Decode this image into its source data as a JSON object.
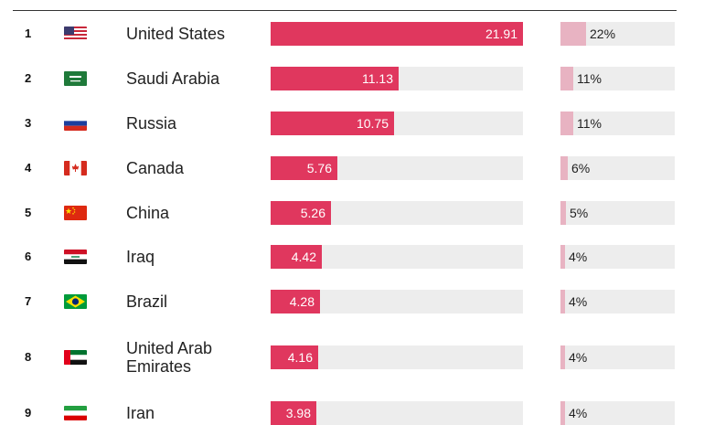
{
  "chart_data": {
    "type": "bar",
    "title": "",
    "xlabel": "",
    "ylabel": "",
    "ylim": [
      0,
      21.91
    ],
    "series": [
      {
        "name": "value",
        "values": [
          21.91,
          11.13,
          10.75,
          5.76,
          5.26,
          4.42,
          4.28,
          4.16,
          3.98
        ]
      },
      {
        "name": "share",
        "values": [
          22,
          11,
          11,
          6,
          5,
          4,
          4,
          4,
          4
        ]
      }
    ],
    "rows": [
      {
        "rank": "1",
        "country_lines": [
          "United States"
        ],
        "flag_icon": "us-flag-icon",
        "value": 21.91,
        "value_label": "21.91",
        "share": 22,
        "share_label": "22%"
      },
      {
        "rank": "2",
        "country_lines": [
          "Saudi Arabia"
        ],
        "flag_icon": "saudi-arabia-flag-icon",
        "value": 11.13,
        "value_label": "11.13",
        "share": 11,
        "share_label": "11%"
      },
      {
        "rank": "3",
        "country_lines": [
          "Russia"
        ],
        "flag_icon": "russia-flag-icon",
        "value": 10.75,
        "value_label": "10.75",
        "share": 11,
        "share_label": "11%"
      },
      {
        "rank": "4",
        "country_lines": [
          "Canada"
        ],
        "flag_icon": "canada-flag-icon",
        "value": 5.76,
        "value_label": "5.76",
        "share": 6,
        "share_label": "6%"
      },
      {
        "rank": "5",
        "country_lines": [
          "China"
        ],
        "flag_icon": "china-flag-icon",
        "value": 5.26,
        "value_label": "5.26",
        "share": 5,
        "share_label": "5%"
      },
      {
        "rank": "6",
        "country_lines": [
          "Iraq"
        ],
        "flag_icon": "iraq-flag-icon",
        "value": 4.42,
        "value_label": "4.42",
        "share": 4,
        "share_label": "4%"
      },
      {
        "rank": "7",
        "country_lines": [
          "Brazil"
        ],
        "flag_icon": "brazil-flag-icon",
        "value": 4.28,
        "value_label": "4.28",
        "share": 4,
        "share_label": "4%"
      },
      {
        "rank": "8",
        "country_lines": [
          "United Arab",
          "Emirates"
        ],
        "flag_icon": "uae-flag-icon",
        "value": 4.16,
        "value_label": "4.16",
        "share": 4,
        "share_label": "4%"
      },
      {
        "rank": "9",
        "country_lines": [
          "Iran"
        ],
        "flag_icon": "iran-flag-icon",
        "value": 3.98,
        "value_label": "3.98",
        "share": 4,
        "share_label": "4%"
      }
    ]
  },
  "colors": {
    "bar": "#e0375e",
    "share": "#e8b3c2",
    "track": "#ededed"
  }
}
